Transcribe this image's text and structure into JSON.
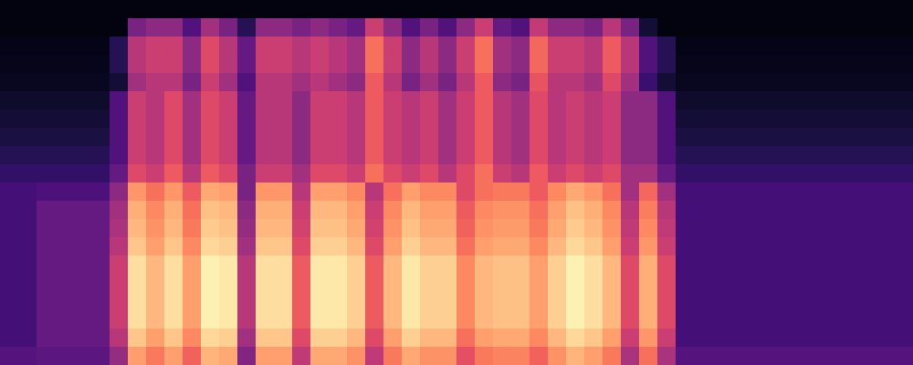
{
  "chart_data": {
    "type": "heatmap",
    "color": "magma",
    "zlim": [
      0,
      100
    ],
    "tick_labels": false,
    "cells": [
      [
        3,
        3,
        3,
        3,
        3,
        3,
        3,
        3,
        3,
        3,
        3,
        3,
        3,
        3,
        3,
        3,
        3,
        3,
        3,
        3,
        3,
        3,
        3,
        3,
        3,
        3,
        3,
        3,
        3,
        3,
        3,
        3,
        3,
        3,
        3,
        3,
        3,
        3,
        3,
        3,
        3,
        3,
        3,
        3,
        3,
        3,
        3,
        3,
        3,
        3
      ],
      [
        3,
        3,
        3,
        3,
        3,
        3,
        3,
        35,
        40,
        40,
        25,
        45,
        35,
        15,
        40,
        40,
        35,
        40,
        35,
        30,
        55,
        40,
        25,
        35,
        25,
        40,
        55,
        30,
        25,
        53,
        40,
        40,
        35,
        50,
        35,
        10,
        3,
        3,
        3,
        3,
        3,
        3,
        3,
        3,
        3,
        3,
        3,
        3,
        3,
        3
      ],
      [
        4,
        4,
        4,
        4,
        4,
        4,
        15,
        50,
        55,
        55,
        40,
        60,
        50,
        30,
        55,
        55,
        50,
        55,
        50,
        45,
        70,
        55,
        40,
        50,
        40,
        55,
        70,
        45,
        40,
        68,
        55,
        55,
        50,
        65,
        50,
        25,
        15,
        4,
        4,
        4,
        4,
        4,
        4,
        4,
        4,
        4,
        4,
        4,
        4,
        4
      ],
      [
        5,
        5,
        5,
        5,
        5,
        5,
        15,
        50,
        55,
        55,
        40,
        60,
        50,
        30,
        55,
        55,
        50,
        55,
        50,
        45,
        70,
        55,
        40,
        50,
        40,
        55,
        70,
        45,
        40,
        68,
        55,
        55,
        50,
        65,
        50,
        25,
        15,
        5,
        5,
        5,
        5,
        5,
        5,
        5,
        5,
        5,
        5,
        5,
        5,
        5
      ],
      [
        6,
        6,
        6,
        6,
        6,
        6,
        10,
        45,
        50,
        50,
        35,
        55,
        45,
        25,
        50,
        50,
        45,
        50,
        45,
        40,
        65,
        50,
        35,
        45,
        35,
        50,
        65,
        40,
        35,
        63,
        50,
        50,
        45,
        60,
        45,
        20,
        10,
        6,
        6,
        6,
        6,
        6,
        6,
        6,
        6,
        6,
        6,
        6,
        6,
        6
      ],
      [
        8,
        8,
        8,
        8,
        8,
        8,
        25,
        55,
        50,
        60,
        45,
        60,
        55,
        30,
        50,
        50,
        40,
        55,
        55,
        50,
        65,
        55,
        50,
        55,
        45,
        55,
        65,
        50,
        45,
        60,
        50,
        55,
        50,
        55,
        40,
        40,
        25,
        8,
        8,
        8,
        8,
        8,
        8,
        8,
        8,
        8,
        8,
        8,
        8,
        8
      ],
      [
        10,
        10,
        10,
        10,
        10,
        10,
        25,
        55,
        50,
        60,
        45,
        60,
        55,
        30,
        50,
        50,
        40,
        55,
        55,
        50,
        65,
        55,
        50,
        55,
        45,
        55,
        65,
        50,
        45,
        60,
        50,
        55,
        50,
        55,
        40,
        40,
        25,
        10,
        10,
        10,
        10,
        10,
        10,
        10,
        10,
        10,
        10,
        10,
        10,
        10
      ],
      [
        12,
        12,
        12,
        12,
        12,
        12,
        25,
        55,
        50,
        60,
        45,
        60,
        55,
        30,
        50,
        50,
        40,
        55,
        55,
        50,
        65,
        55,
        50,
        55,
        45,
        55,
        65,
        50,
        45,
        60,
        50,
        55,
        50,
        55,
        40,
        40,
        25,
        12,
        12,
        12,
        12,
        12,
        12,
        12,
        12,
        12,
        12,
        12,
        12,
        12
      ],
      [
        15,
        15,
        15,
        15,
        15,
        15,
        25,
        55,
        50,
        60,
        45,
        60,
        55,
        30,
        50,
        50,
        40,
        55,
        55,
        50,
        65,
        55,
        50,
        55,
        45,
        55,
        65,
        50,
        45,
        60,
        50,
        55,
        50,
        55,
        40,
        40,
        25,
        15,
        15,
        15,
        15,
        15,
        15,
        15,
        15,
        15,
        15,
        15,
        15,
        15
      ],
      [
        18,
        18,
        18,
        18,
        18,
        18,
        30,
        60,
        55,
        65,
        50,
        65,
        60,
        35,
        55,
        55,
        45,
        60,
        60,
        55,
        70,
        60,
        55,
        60,
        50,
        60,
        70,
        55,
        50,
        65,
        55,
        60,
        55,
        60,
        45,
        45,
        30,
        18,
        18,
        18,
        18,
        18,
        18,
        18,
        18,
        18,
        18,
        18,
        18,
        18
      ],
      [
        22,
        22,
        24,
        24,
        24,
        24,
        40,
        78,
        70,
        78,
        65,
        82,
        80,
        35,
        78,
        78,
        50,
        80,
        80,
        75,
        50,
        70,
        80,
        75,
        75,
        60,
        70,
        72,
        72,
        65,
        75,
        82,
        78,
        70,
        45,
        68,
        45,
        22,
        22,
        22,
        22,
        22,
        22,
        22,
        22,
        22,
        22,
        22,
        22,
        22
      ],
      [
        22,
        22,
        30,
        30,
        30,
        30,
        45,
        83,
        75,
        83,
        70,
        87,
        85,
        40,
        83,
        83,
        55,
        85,
        85,
        80,
        55,
        75,
        85,
        80,
        80,
        65,
        75,
        77,
        77,
        70,
        80,
        87,
        83,
        75,
        50,
        73,
        50,
        22,
        22,
        22,
        22,
        22,
        22,
        22,
        22,
        22,
        22,
        22,
        22,
        22
      ],
      [
        22,
        22,
        30,
        30,
        30,
        30,
        47,
        85,
        77,
        85,
        72,
        89,
        87,
        42,
        85,
        85,
        57,
        87,
        87,
        82,
        57,
        77,
        87,
        82,
        82,
        67,
        77,
        79,
        79,
        72,
        82,
        89,
        85,
        77,
        52,
        75,
        52,
        22,
        22,
        22,
        22,
        22,
        22,
        22,
        22,
        22,
        22,
        22,
        22,
        22
      ],
      [
        22,
        22,
        30,
        30,
        30,
        30,
        50,
        88,
        80,
        88,
        75,
        92,
        90,
        45,
        88,
        88,
        60,
        90,
        90,
        85,
        60,
        80,
        90,
        85,
        85,
        70,
        80,
        82,
        82,
        75,
        85,
        92,
        88,
        80,
        55,
        78,
        55,
        22,
        22,
        22,
        22,
        22,
        22,
        22,
        22,
        22,
        22,
        22,
        22,
        22
      ],
      [
        22,
        22,
        30,
        30,
        30,
        30,
        55,
        93,
        85,
        93,
        80,
        97,
        95,
        50,
        93,
        93,
        65,
        95,
        95,
        90,
        65,
        85,
        95,
        90,
        90,
        75,
        85,
        87,
        87,
        80,
        90,
        97,
        93,
        85,
        60,
        83,
        60,
        22,
        22,
        22,
        22,
        22,
        22,
        22,
        22,
        22,
        22,
        22,
        22,
        22
      ],
      [
        22,
        22,
        30,
        30,
        30,
        30,
        55,
        93,
        85,
        93,
        80,
        97,
        95,
        50,
        93,
        93,
        65,
        95,
        95,
        90,
        65,
        85,
        95,
        90,
        90,
        75,
        85,
        87,
        87,
        80,
        90,
        97,
        93,
        85,
        60,
        83,
        60,
        22,
        22,
        22,
        22,
        22,
        22,
        22,
        22,
        22,
        22,
        22,
        22,
        22
      ],
      [
        22,
        22,
        30,
        30,
        30,
        30,
        55,
        93,
        85,
        93,
        80,
        97,
        95,
        50,
        93,
        93,
        65,
        95,
        95,
        90,
        65,
        85,
        95,
        90,
        90,
        75,
        85,
        87,
        87,
        80,
        90,
        97,
        93,
        85,
        60,
        83,
        60,
        22,
        22,
        22,
        22,
        22,
        22,
        22,
        22,
        22,
        22,
        22,
        22,
        22
      ],
      [
        22,
        22,
        30,
        30,
        30,
        30,
        55,
        93,
        85,
        93,
        80,
        97,
        95,
        50,
        93,
        93,
        65,
        95,
        95,
        90,
        65,
        85,
        95,
        90,
        90,
        75,
        85,
        87,
        87,
        80,
        90,
        97,
        93,
        85,
        60,
        83,
        60,
        22,
        22,
        22,
        22,
        22,
        22,
        22,
        22,
        22,
        22,
        22,
        22,
        22
      ],
      [
        22,
        22,
        30,
        30,
        30,
        30,
        50,
        88,
        80,
        88,
        75,
        92,
        90,
        45,
        88,
        88,
        60,
        90,
        90,
        85,
        60,
        80,
        90,
        85,
        85,
        70,
        80,
        82,
        82,
        75,
        85,
        92,
        88,
        80,
        55,
        78,
        55,
        22,
        22,
        22,
        22,
        22,
        22,
        22,
        22,
        22,
        22,
        22,
        22,
        22
      ],
      [
        26,
        26,
        28,
        28,
        28,
        28,
        42,
        80,
        72,
        80,
        67,
        84,
        82,
        37,
        80,
        80,
        52,
        82,
        82,
        77,
        52,
        72,
        82,
        77,
        77,
        62,
        72,
        74,
        74,
        67,
        77,
        84,
        80,
        72,
        47,
        70,
        47,
        26,
        26,
        26,
        26,
        26,
        26,
        26,
        26,
        26,
        26,
        26,
        26,
        26
      ]
    ]
  }
}
